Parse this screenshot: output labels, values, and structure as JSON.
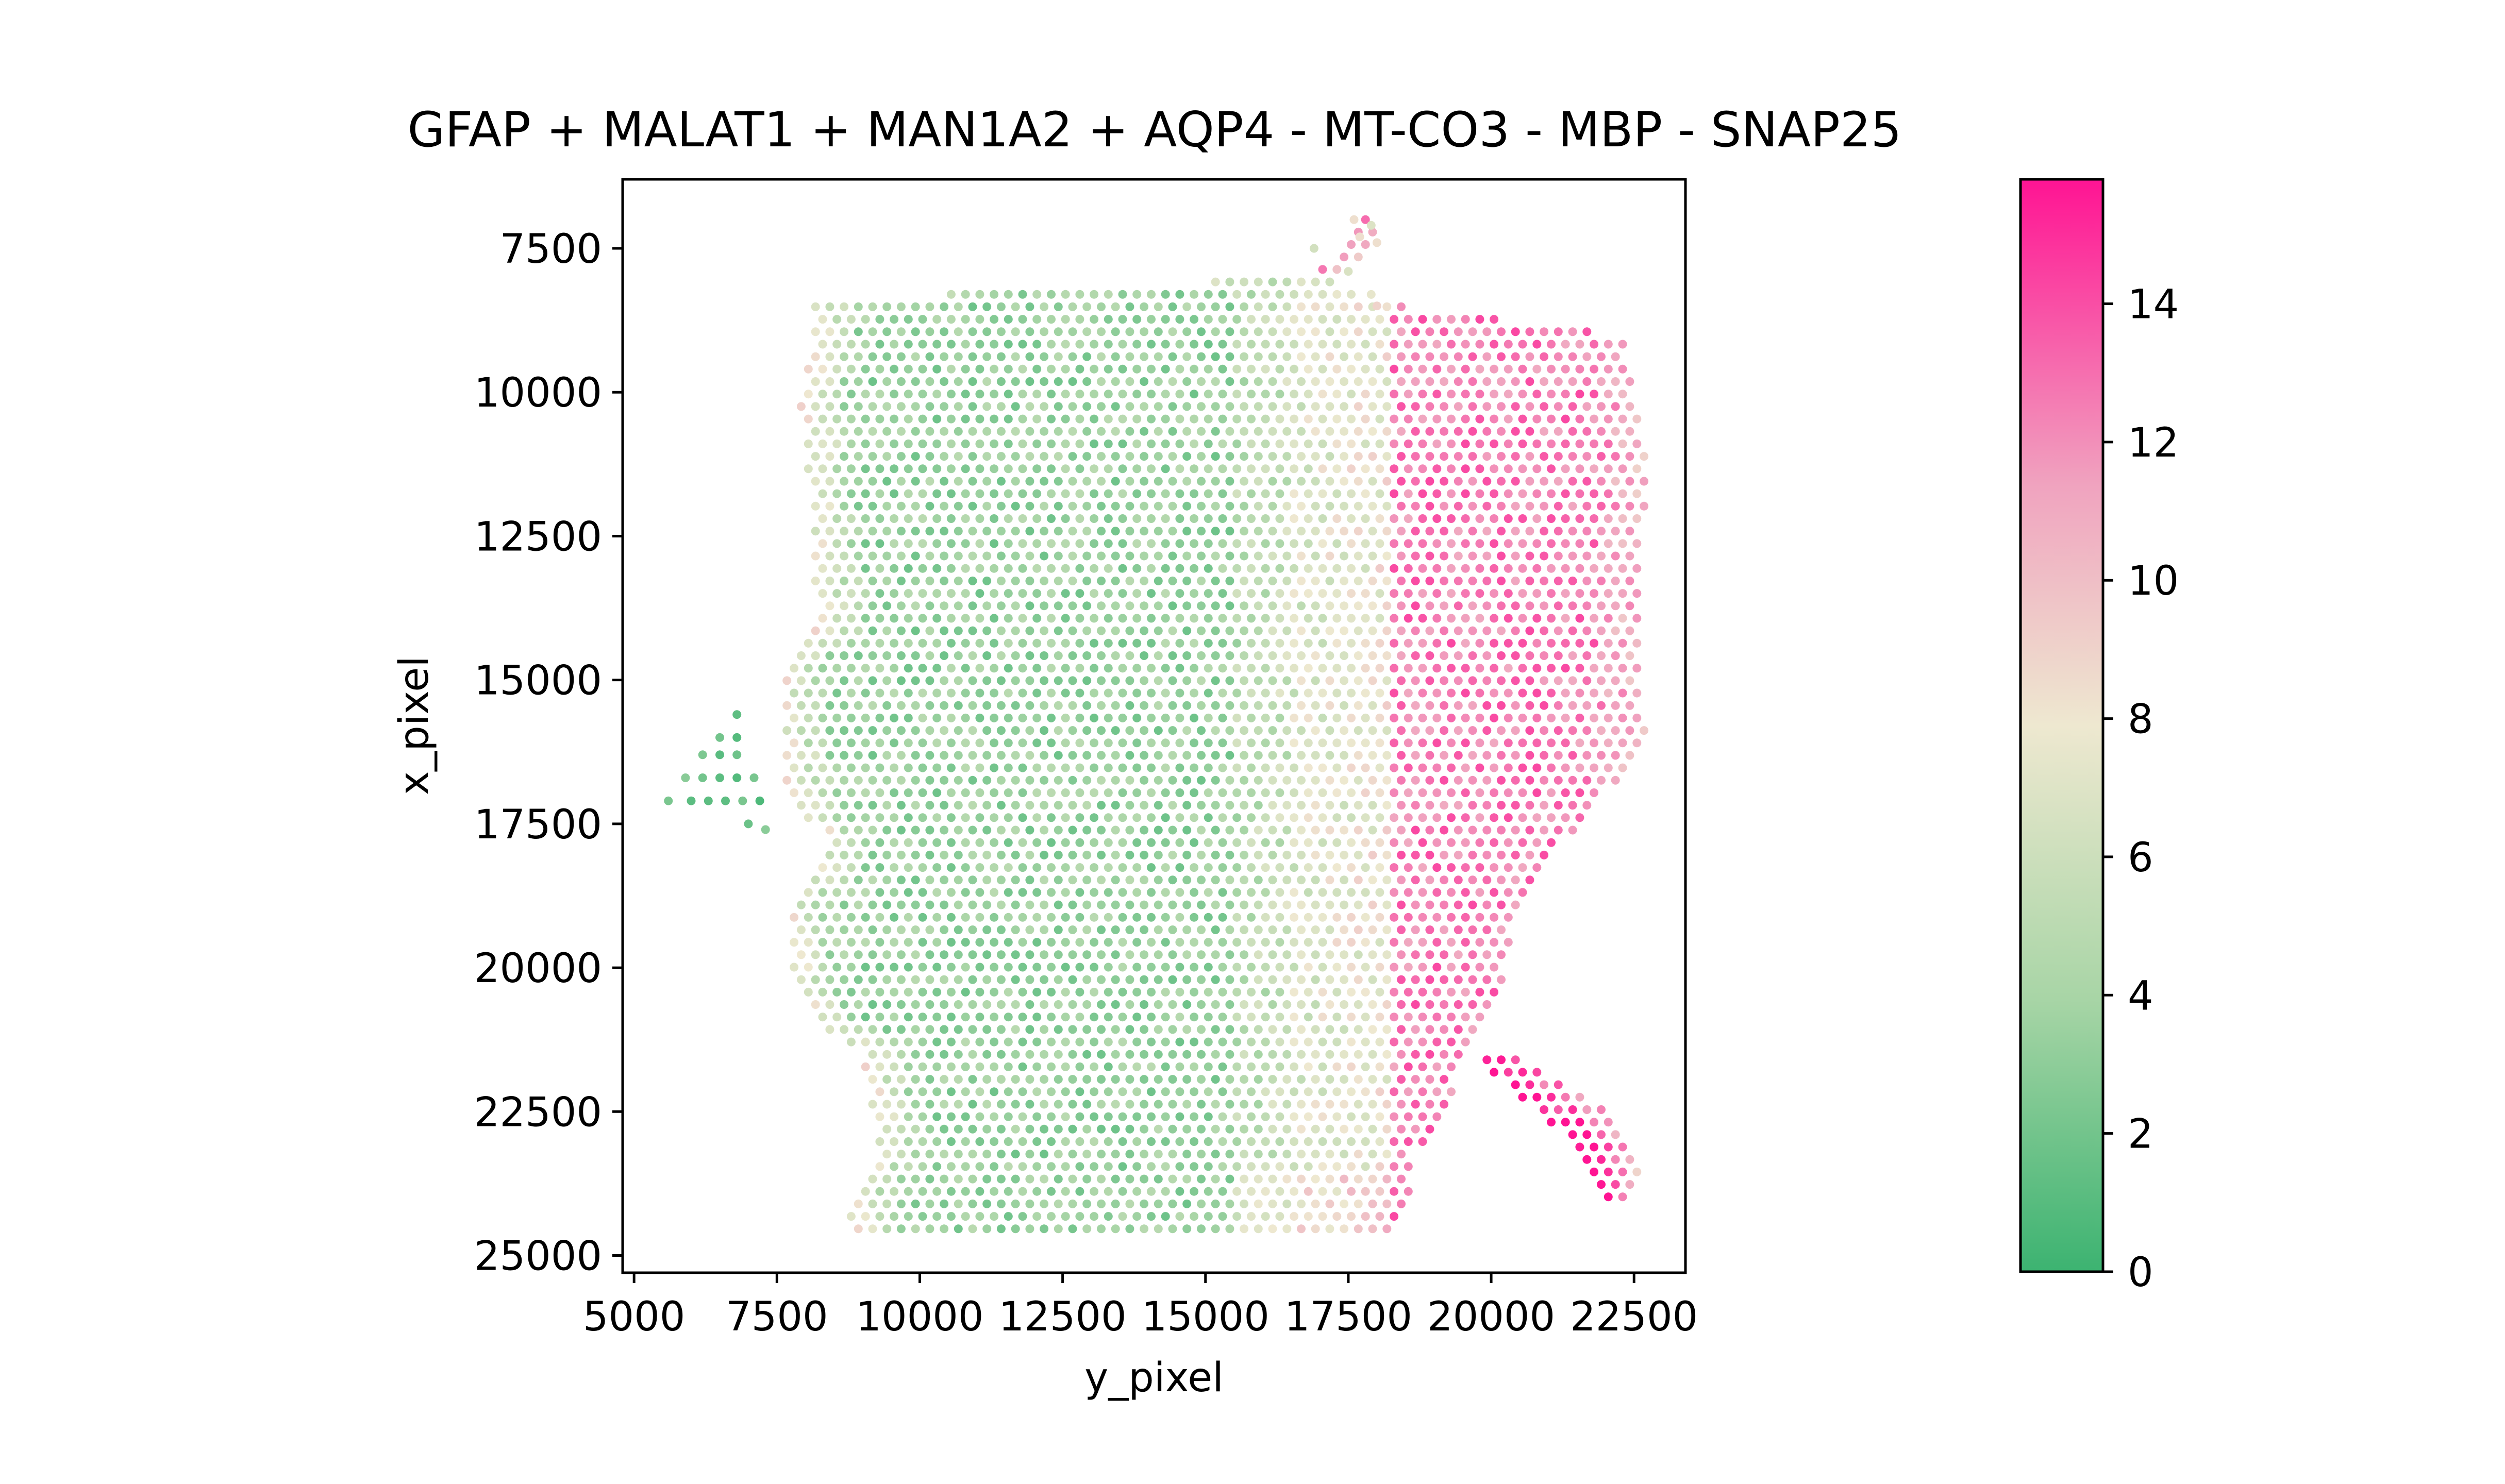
{
  "chart_data": {
    "type": "scatter",
    "title": "GFAP + MALAT1 + MAN1A2 + AQP4 - MT-CO3 - MBP - SNAP25",
    "xlabel": "y_pixel",
    "ylabel": "x_pixel",
    "xlim": [
      4800,
      23400
    ],
    "ylim": [
      6300,
      25300
    ],
    "y_inverted": true,
    "x_ticks": [
      5000,
      7500,
      10000,
      12500,
      15000,
      17500,
      20000,
      22500
    ],
    "y_ticks": [
      7500,
      10000,
      12500,
      15000,
      17500,
      20000,
      22500,
      25000
    ],
    "grid": false,
    "spot_spacing": 250,
    "colorbar": {
      "min": 0,
      "max": 15.8,
      "ticks": [
        0,
        2,
        4,
        6,
        8,
        10,
        12,
        14
      ],
      "colors": [
        "#3cb371",
        "#a8d5a6",
        "#eee8d0",
        "#f0a3bf",
        "#ff1493"
      ],
      "stops": [
        0,
        0.25,
        0.5,
        0.72,
        1
      ]
    },
    "region": {
      "main_rows": [
        [
          7000,
          17700,
          18000
        ],
        [
          7500,
          17500,
          18000
        ],
        [
          8000,
          16800,
          17200
        ],
        [
          8400,
          8200,
          17800
        ],
        [
          8800,
          8100,
          20800
        ],
        [
          9000,
          8100,
          22300
        ],
        [
          9400,
          8100,
          22400
        ],
        [
          10000,
          7900,
          22500
        ],
        [
          11000,
          8000,
          22700
        ],
        [
          12000,
          8100,
          22700
        ],
        [
          13000,
          8100,
          22600
        ],
        [
          14000,
          8300,
          22600
        ],
        [
          14700,
          7600,
          22600
        ],
        [
          16000,
          7600,
          22700
        ],
        [
          17000,
          7700,
          22000
        ],
        [
          17800,
          8400,
          21300
        ],
        [
          18400,
          8000,
          20800
        ],
        [
          19000,
          7700,
          20500
        ],
        [
          19800,
          7700,
          20300
        ],
        [
          20800,
          8000,
          20000
        ],
        [
          21500,
          9000,
          19600
        ],
        [
          22500,
          9200,
          19200
        ],
        [
          23300,
          9200,
          18600
        ],
        [
          24000,
          8800,
          18600
        ],
        [
          24600,
          8800,
          18200
        ]
      ],
      "arm_rows": [
        [
          21600,
          19800,
          20600
        ],
        [
          22000,
          20200,
          21300
        ],
        [
          22500,
          20800,
          22100
        ],
        [
          23000,
          21400,
          22500
        ],
        [
          23600,
          21700,
          22600
        ],
        [
          24100,
          21900,
          22400
        ]
      ],
      "island_points": [
        [
          6800,
          15600
        ],
        [
          6500,
          16000
        ],
        [
          6800,
          16000
        ],
        [
          6200,
          16300
        ],
        [
          6500,
          16300
        ],
        [
          6800,
          16300
        ],
        [
          5900,
          16700
        ],
        [
          6200,
          16700
        ],
        [
          6500,
          16700
        ],
        [
          6800,
          16700
        ],
        [
          7100,
          16700
        ],
        [
          5600,
          17100
        ],
        [
          6000,
          17100
        ],
        [
          6300,
          17100
        ],
        [
          6600,
          17100
        ],
        [
          6900,
          17100
        ],
        [
          7200,
          17100
        ],
        [
          7000,
          17500
        ],
        [
          7300,
          17600
        ]
      ],
      "isolated_points": [
        [
          17600,
          7000
        ],
        [
          17900,
          7100
        ],
        [
          17700,
          7300
        ],
        [
          18000,
          7400
        ],
        [
          16900,
          7500
        ],
        [
          17500,
          7900
        ],
        [
          17900,
          8300
        ],
        [
          18000,
          8500
        ]
      ]
    },
    "value_model": {
      "base": 3.4,
      "pink_boundary_y": 18200,
      "pink_high": 12.6,
      "beige_band_low": 6.5,
      "left_edge_rise": 4.5,
      "noise": 1.6
    }
  }
}
